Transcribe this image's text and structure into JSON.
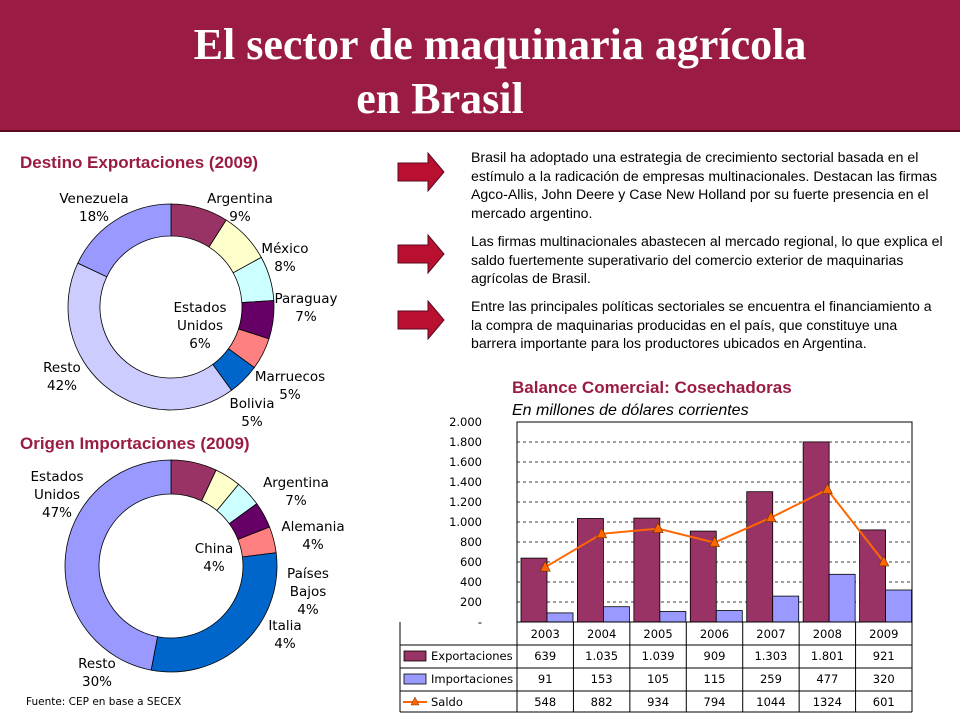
{
  "title": {
    "line1": "El sector de maquinaria agrícola",
    "line2": "en Brasil"
  },
  "colors": {
    "header": "#9b1c43",
    "accent": "#9b1c43",
    "arrow": "#b8102e",
    "exports": "#993366",
    "imports": "#9999ff",
    "saldo": "#ff6600"
  },
  "icons": [
    "arrow-right-icon",
    "arrow-right-icon",
    "arrow-right-icon"
  ],
  "paragraphs": [
    "Brasil ha adoptado una estrategia de crecimiento sectorial basada en el estímulo a la radicación de empresas multinacionales. Destacan las firmas Agco-Allis, John Deere y Case New Holland por su fuerte presencia en el mercado argentino.",
    "Las firmas multinacionales abastecen al mercado regional, lo que explica el saldo fuertemente superativario del comercio exterior de maquinarias agrícolas de Brasil.",
    "Entre las principales políticas sectoriales se encuentra el financiamiento a la compra de maquinarias producidas en el país, que constituye una barrera importante para los productores ubicados en Argentina."
  ],
  "source": "Fuente: CEP en base a SECEX",
  "chart_data": [
    {
      "type": "pie",
      "title": "Destino Exportaciones (2009)",
      "donut": true,
      "slices": [
        {
          "label": "Argentina",
          "value": 9,
          "display": "9%",
          "color": "#993366"
        },
        {
          "label": "México",
          "value": 8,
          "display": "8%",
          "color": "#ffffcc"
        },
        {
          "label": "Paraguay",
          "value": 7,
          "display": "7%",
          "color": "#ccffff"
        },
        {
          "label": "Estados Unidos",
          "value": 6,
          "display": "6%",
          "color": "#660066"
        },
        {
          "label": "Marruecos",
          "value": 5,
          "display": "5%",
          "color": "#ff8080"
        },
        {
          "label": "Bolivia",
          "value": 5,
          "display": "5%",
          "color": "#0066cc"
        },
        {
          "label": "Resto",
          "value": 42,
          "display": "42%",
          "color": "#ccccff"
        },
        {
          "label": "Venezuela",
          "value": 18,
          "display": "18%",
          "color": "#9999ff"
        }
      ]
    },
    {
      "type": "pie",
      "title": "Origen Importaciones (2009)",
      "donut": true,
      "slices": [
        {
          "label": "Argentina",
          "value": 7,
          "display": "7%",
          "color": "#993366"
        },
        {
          "label": "Alemania",
          "value": 4,
          "display": "4%",
          "color": "#ffffcc"
        },
        {
          "label": "Países Bajos",
          "value": 4,
          "display": "4%",
          "color": "#ccffff"
        },
        {
          "label": "China",
          "value": 4,
          "display": "4%",
          "color": "#660066"
        },
        {
          "label": "Italia",
          "value": 4,
          "display": "4%",
          "color": "#ff8080"
        },
        {
          "label": "Resto",
          "value": 30,
          "display": "30%",
          "color": "#0066cc"
        },
        {
          "label": "Estados Unidos",
          "value": 47,
          "display": "47%",
          "color": "#9999ff"
        }
      ]
    },
    {
      "type": "bar",
      "title": "Balance Comercial: Cosechadoras",
      "subtitle": "En millones de dólares corrientes",
      "categories": [
        "2003",
        "2004",
        "2005",
        "2006",
        "2007",
        "2008",
        "2009"
      ],
      "yticks": [
        "-",
        "200",
        "400",
        "600",
        "800",
        "1.000",
        "1.200",
        "1.400",
        "1.600",
        "1.800",
        "2.000"
      ],
      "ylim": [
        0,
        2000
      ],
      "grid": true,
      "series": [
        {
          "name": "Exportaciones",
          "kind": "bar",
          "values": [
            639,
            1035,
            1039,
            909,
            1303,
            1801,
            921
          ],
          "labels": [
            "639",
            "1.035",
            "1.039",
            "909",
            "1.303",
            "1.801",
            "921"
          ]
        },
        {
          "name": "Importaciones",
          "kind": "bar",
          "values": [
            91,
            153,
            105,
            115,
            259,
            477,
            320
          ],
          "labels": [
            "91",
            "153",
            "105",
            "115",
            "259",
            "477",
            "320"
          ]
        },
        {
          "name": "Saldo",
          "kind": "line",
          "values": [
            548,
            882,
            934,
            794,
            1044,
            1324,
            601
          ],
          "labels": [
            "548",
            "882",
            "934",
            "794",
            "1044",
            "1324",
            "601"
          ]
        }
      ]
    }
  ]
}
